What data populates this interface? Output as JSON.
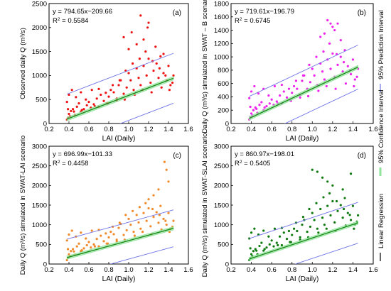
{
  "colors": {
    "prediction": "#6f73e6",
    "confidence": "#8fe39a",
    "regression": "#1a8a1a",
    "axis": "#000000"
  },
  "legend": {
    "prediction_label": "95% Prediction Interval",
    "confidence_label": "95% Confidence Interval",
    "regression_label": "Linear Regression"
  },
  "chart_data": [
    {
      "type": "scatter",
      "panel_label": "(a)",
      "equation": "y = 794.65x−209.66",
      "r2_prefix": "R",
      "r2_value": " = 0.5584",
      "xlabel": "LAI (Daily)",
      "ylabel": "Observed daily Q (m³/s)",
      "xlim": [
        0.2,
        1.6
      ],
      "ylim": [
        0,
        2500
      ],
      "xticks": [
        "0.2",
        "0.4",
        "0.6",
        "0.8",
        "1.0",
        "1.2",
        "1.4",
        "1.6"
      ],
      "yticks": [
        "0",
        "500",
        "1000",
        "1500",
        "2000",
        "2500"
      ],
      "slope": 794.65,
      "intercept": -209.66,
      "pi_offset": 520,
      "ci_offset": 35,
      "point_color": "#ee1111",
      "x": [
        0.38,
        0.39,
        0.4,
        0.41,
        0.42,
        0.44,
        0.46,
        0.48,
        0.5,
        0.52,
        0.55,
        0.58,
        0.6,
        0.62,
        0.65,
        0.68,
        0.7,
        0.72,
        0.75,
        0.78,
        0.8,
        0.82,
        0.85,
        0.88,
        0.9,
        0.92,
        0.95,
        0.98,
        1.0,
        1.02,
        1.05,
        1.08,
        1.1,
        1.12,
        1.15,
        1.18,
        1.2,
        1.22,
        1.25,
        1.28,
        1.3,
        1.32,
        1.35,
        1.38,
        1.4,
        1.42,
        1.45,
        0.38,
        0.4,
        0.43,
        0.47,
        0.52,
        0.57,
        0.63,
        0.7,
        0.77,
        0.84,
        0.91,
        0.97,
        1.04,
        1.11,
        1.17,
        1.24,
        1.31,
        1.37,
        1.44,
        0.39,
        0.45,
        0.53,
        0.66,
        0.79,
        0.88,
        0.96,
        1.06,
        1.14,
        1.23,
        1.33,
        1.41,
        0.95,
        1.0,
        1.08,
        1.15,
        1.2,
        1.27,
        1.35,
        1.12,
        1.03,
        1.19
      ],
      "y": [
        80,
        120,
        200,
        150,
        260,
        300,
        180,
        350,
        420,
        250,
        300,
        380,
        450,
        330,
        400,
        520,
        350,
        600,
        470,
        420,
        560,
        700,
        650,
        520,
        800,
        900,
        620,
        750,
        1050,
        900,
        700,
        1150,
        950,
        800,
        1200,
        1000,
        1350,
        850,
        1100,
        1250,
        950,
        1400,
        1050,
        900,
        1200,
        800,
        1000,
        450,
        600,
        700,
        550,
        650,
        500,
        700,
        720,
        640,
        800,
        900,
        1100,
        1250,
        1350,
        1500,
        1300,
        1150,
        1000,
        850,
        300,
        250,
        280,
        360,
        420,
        480,
        500,
        600,
        700,
        650,
        750,
        700,
        1800,
        1550,
        1650,
        1750,
        2100,
        1600,
        1450,
        2250,
        1900,
        2000
      ]
    },
    {
      "type": "scatter",
      "panel_label": "(b)",
      "equation": "y = 719.61x−196.79",
      "r2_prefix": "R",
      "r2_value": " = 0.6745",
      "xlabel": "LAI (Daily)",
      "ylabel": "Daily Q (m³/s) simulated in SWAT – B scenario",
      "xlim": [
        0.2,
        1.6
      ],
      "ylim": [
        0,
        1800
      ],
      "xticks": [
        "0.2",
        "0.4",
        "0.6",
        "0.8",
        "1.0",
        "1.2",
        "1.4",
        "1.6"
      ],
      "yticks": [
        "0",
        "200",
        "400",
        "600",
        "800",
        "1000",
        "1200",
        "1400",
        "1600",
        "1800"
      ],
      "slope": 719.61,
      "intercept": -196.79,
      "pi_offset": 330,
      "ci_offset": 25,
      "point_color": "#ee22ee",
      "x": [
        0.38,
        0.39,
        0.4,
        0.41,
        0.42,
        0.44,
        0.46,
        0.48,
        0.5,
        0.52,
        0.55,
        0.58,
        0.6,
        0.62,
        0.65,
        0.68,
        0.7,
        0.72,
        0.75,
        0.78,
        0.8,
        0.82,
        0.85,
        0.88,
        0.9,
        0.92,
        0.95,
        0.98,
        1.0,
        1.02,
        1.05,
        1.08,
        1.1,
        1.12,
        1.15,
        1.18,
        1.2,
        1.22,
        1.25,
        1.28,
        1.3,
        1.32,
        1.35,
        1.38,
        1.4,
        1.42,
        1.45,
        0.38,
        0.4,
        0.43,
        0.47,
        0.52,
        0.57,
        0.63,
        0.7,
        0.77,
        0.84,
        0.91,
        0.97,
        1.04,
        1.11,
        1.17,
        1.24,
        1.31,
        1.37,
        1.44,
        0.39,
        0.45,
        0.53,
        0.66,
        0.79,
        0.88,
        0.96,
        1.06,
        1.14,
        1.23,
        1.33,
        1.41,
        1.15,
        1.18,
        1.2,
        1.22,
        1.25,
        1.12,
        1.08,
        1.28
      ],
      "y": [
        60,
        100,
        150,
        120,
        200,
        240,
        160,
        280,
        320,
        200,
        260,
        300,
        360,
        280,
        330,
        420,
        300,
        480,
        390,
        350,
        460,
        560,
        520,
        430,
        640,
        720,
        520,
        620,
        820,
        720,
        580,
        900,
        780,
        660,
        960,
        820,
        1050,
        700,
        880,
        1000,
        780,
        1100,
        860,
        740,
        960,
        660,
        820,
        380,
        480,
        560,
        450,
        520,
        420,
        560,
        580,
        520,
        640,
        720,
        880,
        1000,
        1080,
        1200,
        1040,
        920,
        800,
        700,
        250,
        220,
        240,
        300,
        340,
        390,
        410,
        490,
        560,
        520,
        600,
        560,
        1550,
        1500,
        1450,
        1400,
        1500,
        1350,
        1300,
        1250
      ]
    },
    {
      "type": "scatter",
      "panel_label": "(c)",
      "equation": "y = 696.99x−101.33",
      "r2_prefix": "R",
      "r2_value": " = 0.4458",
      "xlabel": "LAI (Daily)",
      "ylabel": "Daily Q (m³/s) simulated in SWAT-LAI scenario",
      "xlim": [
        0.2,
        1.6
      ],
      "ylim": [
        0,
        3000
      ],
      "xticks": [
        "0.2",
        "0.4",
        "0.6",
        "0.8",
        "1.0",
        "1.2",
        "1.4",
        "1.6"
      ],
      "yticks": [
        "0",
        "500",
        "1000",
        "1500",
        "2000",
        "2500",
        "3000"
      ],
      "slope": 696.99,
      "intercept": -101.33,
      "pi_offset": 470,
      "ci_offset": 40,
      "point_color": "#f08a2a",
      "x": [
        0.38,
        0.39,
        0.4,
        0.41,
        0.42,
        0.44,
        0.46,
        0.48,
        0.5,
        0.52,
        0.55,
        0.58,
        0.6,
        0.62,
        0.65,
        0.68,
        0.7,
        0.72,
        0.75,
        0.78,
        0.8,
        0.82,
        0.85,
        0.88,
        0.9,
        0.92,
        0.95,
        0.98,
        1.0,
        1.02,
        1.05,
        1.08,
        1.1,
        1.12,
        1.15,
        1.18,
        1.2,
        1.22,
        1.25,
        1.28,
        1.3,
        1.32,
        1.35,
        1.38,
        1.4,
        1.42,
        1.45,
        0.38,
        0.4,
        0.43,
        0.47,
        0.52,
        0.57,
        0.63,
        0.7,
        0.77,
        0.84,
        0.91,
        0.97,
        1.04,
        1.11,
        1.17,
        1.24,
        1.31,
        1.37,
        1.44,
        0.39,
        0.45,
        0.53,
        0.66,
        0.79,
        0.88,
        0.96,
        1.06,
        1.14,
        1.23,
        1.33,
        1.41,
        1.36,
        1.38,
        1.4,
        1.3,
        1.25,
        1.2
      ],
      "y": [
        100,
        160,
        250,
        200,
        330,
        380,
        240,
        450,
        520,
        330,
        400,
        480,
        560,
        420,
        500,
        640,
        450,
        720,
        580,
        520,
        680,
        820,
        760,
        620,
        920,
        1020,
        740,
        860,
        1150,
        1000,
        820,
        1250,
        1060,
        900,
        1300,
        1100,
        1420,
        960,
        1200,
        1320,
        1050,
        1480,
        1150,
        1000,
        1300,
        900,
        1100,
        600,
        750,
        850,
        700,
        800,
        650,
        850,
        870,
        780,
        950,
        1050,
        1250,
        1350,
        1450,
        1550,
        1400,
        1250,
        1100,
        950,
        380,
        320,
        350,
        450,
        520,
        580,
        620,
        720,
        820,
        760,
        880,
        820,
        2600,
        2400,
        2100,
        1900,
        1750,
        1650
      ]
    },
    {
      "type": "scatter",
      "panel_label": "(d)",
      "equation": "y = 860.97x−198.01",
      "r2_prefix": "R",
      "r2_value": " = 0.5405",
      "xlabel": "LAI (Daily)",
      "ylabel": "Daily Q (m³/s) simulated in SWAT-SLAI scenario",
      "xlim": [
        0.2,
        1.6
      ],
      "ylim": [
        0,
        3000
      ],
      "xticks": [
        "0.2",
        "0.4",
        "0.6",
        "0.8",
        "1.0",
        "1.2",
        "1.4",
        "1.6"
      ],
      "yticks": [
        "0",
        "500",
        "1000",
        "1500",
        "2000",
        "2500",
        "3000"
      ],
      "slope": 860.97,
      "intercept": -198.01,
      "pi_offset": 520,
      "ci_offset": 40,
      "point_color": "#0f7a0f",
      "x": [
        0.38,
        0.39,
        0.4,
        0.41,
        0.42,
        0.44,
        0.46,
        0.48,
        0.5,
        0.52,
        0.55,
        0.58,
        0.6,
        0.62,
        0.65,
        0.68,
        0.7,
        0.72,
        0.75,
        0.78,
        0.8,
        0.82,
        0.85,
        0.88,
        0.9,
        0.92,
        0.95,
        0.98,
        1.0,
        1.02,
        1.05,
        1.08,
        1.1,
        1.12,
        1.15,
        1.18,
        1.2,
        1.22,
        1.25,
        1.28,
        1.3,
        1.32,
        1.35,
        1.38,
        1.4,
        1.42,
        1.45,
        0.38,
        0.4,
        0.43,
        0.47,
        0.52,
        0.57,
        0.63,
        0.7,
        0.77,
        0.84,
        0.91,
        0.97,
        1.04,
        1.11,
        1.17,
        1.24,
        1.31,
        1.37,
        1.44,
        0.39,
        0.45,
        0.53,
        0.66,
        0.79,
        0.88,
        0.96,
        1.06,
        1.14,
        1.23,
        1.33,
        1.41,
        1.0,
        1.05,
        1.1,
        1.15,
        1.2,
        1.3,
        1.38
      ],
      "y": [
        100,
        150,
        250,
        200,
        330,
        380,
        250,
        460,
        540,
        340,
        420,
        500,
        600,
        450,
        540,
        700,
        480,
        800,
        640,
        560,
        740,
        900,
        840,
        680,
        1000,
        1120,
        820,
        950,
        1300,
        1120,
        900,
        1400,
        1180,
        1000,
        1480,
        1240,
        1600,
        1060,
        1350,
        1500,
        1180,
        1680,
        1300,
        1120,
        1480,
        1000,
        1240,
        650,
        800,
        900,
        750,
        850,
        700,
        900,
        920,
        840,
        1050,
        1200,
        1400,
        1550,
        1700,
        1800,
        1600,
        1400,
        1250,
        1080,
        400,
        340,
        380,
        480,
        560,
        620,
        680,
        800,
        900,
        840,
        980,
        900,
        2400,
        2350,
        2200,
        2100,
        2000,
        1900,
        2300
      ]
    }
  ]
}
